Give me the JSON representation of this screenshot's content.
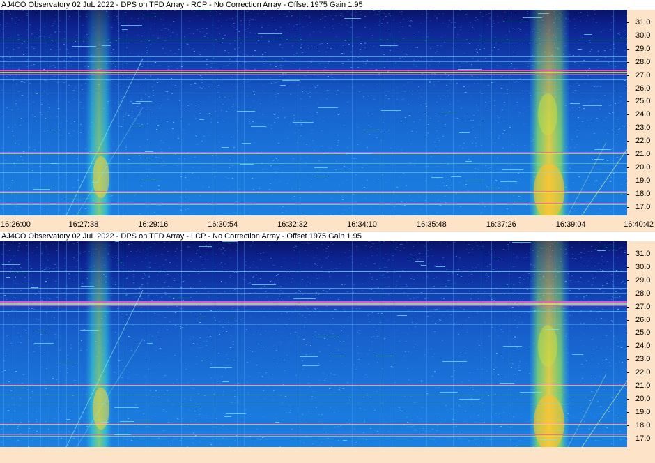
{
  "panels": [
    {
      "id": "rcp",
      "title": "AJ4CO Observatory 02 JuL 2022 - DPS on TFD Array  - RCP  -  No Correction Array  -  Offset 1975  Gain 1.95",
      "freq_labels": [
        "31.0",
        "30.0",
        "29.0",
        "28.0",
        "27.0",
        "26.0",
        "25.0",
        "24.0",
        "23.0",
        "22.0",
        "21.0",
        "20.0",
        "19.0",
        "18.0",
        "17.0"
      ]
    },
    {
      "id": "lcp",
      "title": "AJ4CO Observatory 02 JuL 2022 - DPS on TFD Array  - LCP  -  No Correction Array  -  Offset 1975  Gain 1.95",
      "freq_labels": [
        "31.0",
        "30.0",
        "29.0",
        "28.0",
        "27.0",
        "26.0",
        "25.0",
        "24.0",
        "23.0",
        "22.0",
        "21.0",
        "20.0",
        "19.0",
        "18.0",
        "17.0"
      ]
    }
  ],
  "time_axis": {
    "labels": [
      "16:26:00",
      "16:27:38",
      "16:29:16",
      "16:30:54",
      "16:32:32",
      "16:34:10",
      "16:35:48",
      "16:37:26",
      "16:39:04",
      "16:40:42"
    ]
  },
  "colors": {
    "axis_background": "#fde3c7",
    "spectrogram_low": "#0a1a7a",
    "spectrogram_mid": "#1e6ad8",
    "spectrogram_high": "#ffd23a",
    "rfi_line": "#ff4fd8"
  }
}
